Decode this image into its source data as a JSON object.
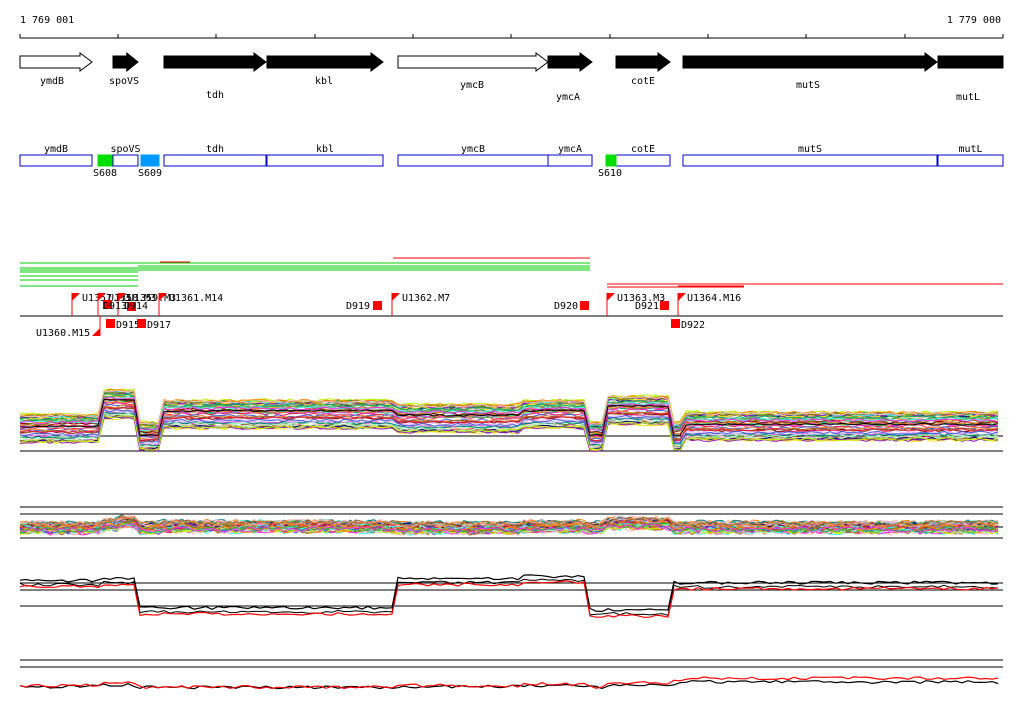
{
  "coords": {
    "start": "1 769 001",
    "end": "1 779 000"
  },
  "genes_top": [
    {
      "label": "ymdB",
      "fill": "white",
      "dir": "right"
    },
    {
      "label": "spoVS",
      "fill": "black",
      "dir": "right"
    },
    {
      "label": "tdh",
      "fill": "black",
      "dir": "right"
    },
    {
      "label": "kbl",
      "fill": "black",
      "dir": "right"
    },
    {
      "label": "ymcB",
      "fill": "white",
      "dir": "right"
    },
    {
      "label": "ymcA",
      "fill": "black",
      "dir": "right"
    },
    {
      "label": "cotE",
      "fill": "black",
      "dir": "right"
    },
    {
      "label": "mutS",
      "fill": "black",
      "dir": "right"
    },
    {
      "label": "mutL",
      "fill": "black",
      "dir": "right"
    }
  ],
  "genes_boxed": [
    {
      "label": "ymdB"
    },
    {
      "label": "spoVS"
    },
    {
      "label": "tdh"
    },
    {
      "label": "kbl"
    },
    {
      "label": "ymcB"
    },
    {
      "label": "ymcA"
    },
    {
      "label": "cotE"
    },
    {
      "label": "mutS"
    },
    {
      "label": "mutL"
    }
  ],
  "s_elements": [
    {
      "label": "S608",
      "color": "#00dd00"
    },
    {
      "label": "S609",
      "color": "#0099ff"
    },
    {
      "label": "S610",
      "color": "#00dd00"
    }
  ],
  "u_flags": [
    {
      "label": "U1357.M3"
    },
    {
      "label": "U1358.M3"
    },
    {
      "label": "U1359.M3"
    },
    {
      "label": "U1361.M14"
    },
    {
      "label": "U1362.M7"
    },
    {
      "label": "U1363.M3"
    },
    {
      "label": "U1364.M16"
    },
    {
      "label": "U1360.M15"
    }
  ],
  "d_boxes": [
    {
      "label": "D913"
    },
    {
      "label": "D914"
    },
    {
      "label": "D915"
    },
    {
      "label": "D917"
    },
    {
      "label": "D919"
    },
    {
      "label": "D920"
    },
    {
      "label": "D921"
    },
    {
      "label": "D922"
    }
  ],
  "colors": {
    "gene_box": "#0000cc",
    "flag": "#ff0000",
    "utr_green": "#00cc00",
    "utr_red": "#ff0000",
    "avg_black": "#000000",
    "avg_red": "#ff0000"
  },
  "expression_panels": [
    {
      "name": "tiling-expression-profiles",
      "series_count": 50
    },
    {
      "name": "log-ratio-profiles",
      "series_count": 50
    },
    {
      "name": "mean-expression",
      "series": [
        "black",
        "red"
      ]
    },
    {
      "name": "mean-log-ratio",
      "series": [
        "black",
        "red"
      ]
    }
  ]
}
